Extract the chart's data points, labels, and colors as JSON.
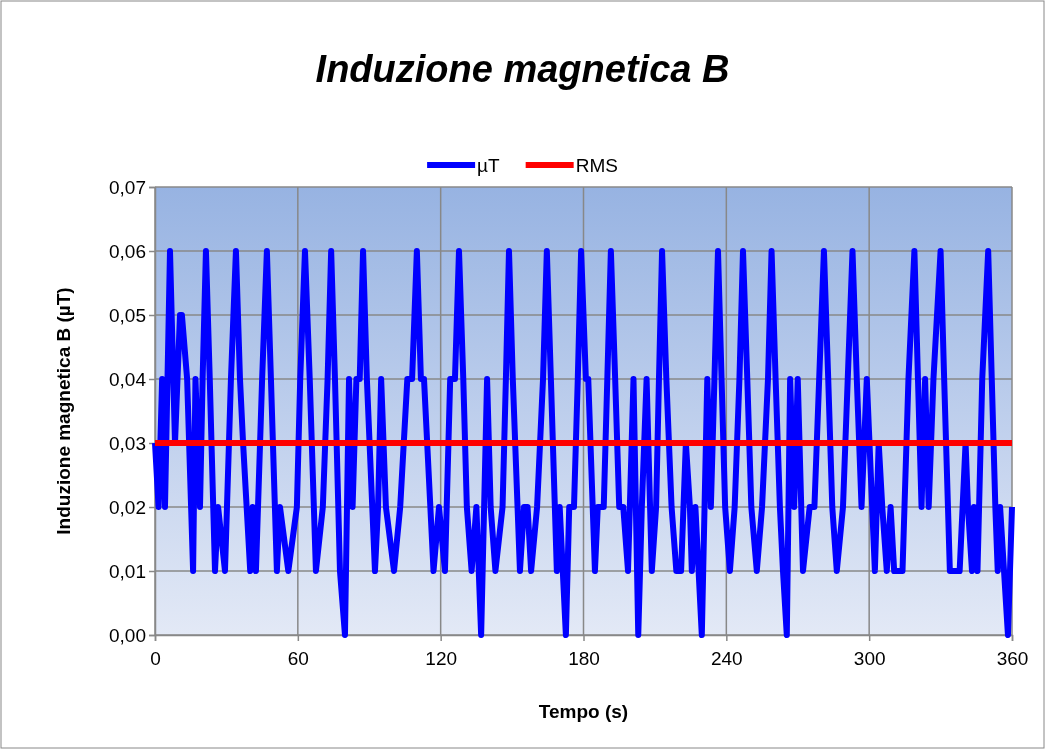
{
  "chart_data": {
    "type": "line",
    "title": "Induzione magnetica B",
    "xlabel": "Tempo (s)",
    "ylabel": "Induzione magnetica B (µT)",
    "xlim": [
      0,
      360
    ],
    "xticks": [
      0,
      60,
      120,
      180,
      240,
      300,
      360
    ],
    "ylim": [
      0,
      0.07
    ],
    "yticks": [
      {
        "value": 0,
        "label": "0,00"
      },
      {
        "value": 0.01,
        "label": "0,01"
      },
      {
        "value": 0.02,
        "label": "0,02"
      },
      {
        "value": 0.03,
        "label": "0,03"
      },
      {
        "value": 0.04,
        "label": "0,04"
      },
      {
        "value": 0.05,
        "label": "0,05"
      },
      {
        "value": 0.06,
        "label": "0,06"
      },
      {
        "value": 0.07,
        "label": "0,07"
      }
    ],
    "grid": true,
    "legend": "top",
    "marker": "none",
    "line_style": "solid",
    "series": [
      {
        "name": "µT",
        "color": "#0000ff",
        "x": [
          0,
          1.5,
          3,
          4.2,
          6.3,
          8.4,
          10.5,
          11.3,
          13.5,
          16,
          17,
          18.9,
          20,
          21.4,
          23,
          25.2,
          26.5,
          29.4,
          31.9,
          34,
          35.7,
          37,
          40,
          41,
          42.4,
          45,
          47,
          48.7,
          51.2,
          52.5,
          56,
          59.6,
          61,
          63,
          65,
          67.6,
          70.5,
          72.5,
          74,
          75.6,
          77.7,
          79.8,
          81.5,
          83,
          84.6,
          86,
          87.4,
          89,
          92.4,
          93.7,
          95,
          97,
          100.4,
          103,
          106,
          108,
          110,
          111.7,
          113,
          117,
          119.3,
          121.8,
          124,
          126,
          127.7,
          129.5,
          131,
          133,
          135,
          137,
          139.5,
          141,
          143,
          146,
          147.4,
          148.7,
          150.3,
          153.3,
          155,
          156.5,
          158,
          160.5,
          163,
          164.6,
          166.3,
          168.8,
          170,
          172.6,
          174,
          176,
          177.6,
          179,
          181,
          182,
          184.8,
          186,
          188.5,
          190,
          191.5,
          193.3,
          195,
          196.7,
          198.7,
          201,
          203,
          204.5,
          206.5,
          208.7,
          210.5,
          211.7,
          213,
          214.8,
          217,
          219,
          221,
          223,
          224.7,
          225.5,
          227,
          229.7,
          232,
          233.5,
          235,
          236.5,
          238,
          239.5,
          241.5,
          243.5,
          245.5,
          247,
          248.8,
          250.5,
          252.8,
          255,
          257.5,
          259,
          260.7,
          262.5,
          263.8,
          265.4,
          266.8,
          268.5,
          270,
          272.2,
          275,
          277,
          279,
          281,
          282.8,
          284.5,
          286.4,
          289,
          291,
          293,
          294.8,
          296.8,
          299,
          302.4,
          304,
          305.5,
          307.4,
          309,
          310.5,
          314,
          316.5,
          319,
          320.5,
          322,
          323.5,
          325,
          327,
          330,
          331.5,
          333.9,
          336,
          338,
          340.5,
          341.5,
          343.2,
          344,
          345.5,
          347.5,
          350,
          351.5,
          353,
          354,
          355,
          358.3,
          360
        ],
        "values": [
          0.03,
          0.02,
          0.04,
          0.02,
          0.06,
          0.03,
          0.05,
          0.05,
          0.04,
          0.01,
          0.04,
          0.02,
          0.04,
          0.06,
          0.04,
          0.01,
          0.02,
          0.01,
          0.04,
          0.06,
          0.04,
          0.03,
          0.01,
          0.02,
          0.01,
          0.04,
          0.06,
          0.04,
          0.01,
          0.02,
          0.01,
          0.02,
          0.04,
          0.06,
          0.04,
          0.01,
          0.02,
          0.04,
          0.06,
          0.04,
          0.01,
          0,
          0.04,
          0.02,
          0.04,
          0.04,
          0.06,
          0.04,
          0.01,
          0.02,
          0.04,
          0.02,
          0.01,
          0.02,
          0.04,
          0.04,
          0.06,
          0.04,
          0.04,
          0.01,
          0.02,
          0.01,
          0.04,
          0.04,
          0.06,
          0.04,
          0.02,
          0.01,
          0.02,
          0,
          0.04,
          0.02,
          0.01,
          0.02,
          0.04,
          0.06,
          0.04,
          0.01,
          0.02,
          0.02,
          0.01,
          0.02,
          0.04,
          0.06,
          0.04,
          0.01,
          0.02,
          0,
          0.02,
          0.02,
          0.04,
          0.06,
          0.04,
          0.04,
          0.01,
          0.02,
          0.02,
          0.04,
          0.06,
          0.04,
          0.02,
          0.02,
          0.01,
          0.04,
          0,
          0.02,
          0.04,
          0.01,
          0.02,
          0.04,
          0.06,
          0.04,
          0.02,
          0.01,
          0.01,
          0.03,
          0.02,
          0.01,
          0.02,
          0,
          0.04,
          0.02,
          0.04,
          0.06,
          0.04,
          0.02,
          0.01,
          0.02,
          0.04,
          0.06,
          0.04,
          0.02,
          0.01,
          0.02,
          0.04,
          0.06,
          0.04,
          0.02,
          0.01,
          0,
          0.04,
          0.02,
          0.04,
          0.01,
          0.02,
          0.02,
          0.04,
          0.06,
          0.04,
          0.02,
          0.01,
          0.02,
          0.04,
          0.06,
          0.04,
          0.02,
          0.04,
          0.01,
          0.03,
          0.02,
          0.01,
          0.02,
          0.01,
          0.01,
          0.04,
          0.06,
          0.04,
          0.02,
          0.04,
          0.02,
          0.04,
          0.06,
          0.04,
          0.01,
          0.01,
          0.01,
          0.03,
          0.02,
          0.01,
          0.02,
          0.01,
          0.04,
          0.06,
          0.04,
          0.02,
          0.01,
          0.02,
          0,
          0.02
        ]
      },
      {
        "name": "RMS",
        "color": "#ff0000",
        "x": [
          0,
          360
        ],
        "values": [
          0.03,
          0.03
        ]
      }
    ]
  }
}
